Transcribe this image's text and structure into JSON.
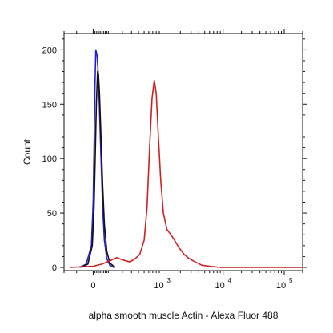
{
  "chart_data": {
    "type": "line",
    "title": "",
    "xlabel": "alpha smooth muscle Actin - Alexa Fluor 488",
    "ylabel": "Count",
    "xscale": "biexponential",
    "xlim": [
      -200,
      200000
    ],
    "ylim": [
      0,
      215
    ],
    "y_ticks": [
      0,
      50,
      100,
      150,
      200
    ],
    "x_ticks": [
      {
        "value": 0,
        "base": "0",
        "exp": ""
      },
      {
        "value": 1000,
        "base": "10",
        "exp": "3"
      },
      {
        "value": 10000,
        "base": "10",
        "exp": "4"
      },
      {
        "value": 100000,
        "base": "10",
        "exp": "5"
      }
    ],
    "grid": false,
    "legend": "none",
    "series": [
      {
        "color": "#2222cc",
        "points": [
          [
            -80,
            0
          ],
          [
            -40,
            3
          ],
          [
            -10,
            20
          ],
          [
            0,
            60
          ],
          [
            5,
            110
          ],
          [
            10,
            165
          ],
          [
            15,
            200
          ],
          [
            22,
            195
          ],
          [
            28,
            180
          ],
          [
            35,
            150
          ],
          [
            45,
            100
          ],
          [
            55,
            55
          ],
          [
            65,
            25
          ],
          [
            80,
            8
          ],
          [
            100,
            2
          ],
          [
            130,
            0
          ]
        ]
      },
      {
        "color": "#111111",
        "points": [
          [
            -70,
            0
          ],
          [
            -30,
            3
          ],
          [
            -5,
            20
          ],
          [
            5,
            55
          ],
          [
            12,
            105
          ],
          [
            18,
            150
          ],
          [
            25,
            180
          ],
          [
            30,
            178
          ],
          [
            36,
            160
          ],
          [
            45,
            120
          ],
          [
            55,
            75
          ],
          [
            65,
            40
          ],
          [
            80,
            15
          ],
          [
            100,
            4
          ],
          [
            140,
            0
          ]
        ]
      },
      {
        "color": "#cc2222",
        "points": [
          [
            -150,
            0
          ],
          [
            0,
            1
          ],
          [
            50,
            3
          ],
          [
            100,
            6
          ],
          [
            150,
            9
          ],
          [
            200,
            7
          ],
          [
            280,
            5
          ],
          [
            350,
            8
          ],
          [
            420,
            12
          ],
          [
            500,
            25
          ],
          [
            560,
            55
          ],
          [
            620,
            110
          ],
          [
            680,
            155
          ],
          [
            740,
            172
          ],
          [
            800,
            160
          ],
          [
            870,
            120
          ],
          [
            950,
            80
          ],
          [
            1050,
            50
          ],
          [
            1200,
            35
          ],
          [
            1400,
            30
          ],
          [
            1600,
            25
          ],
          [
            1900,
            18
          ],
          [
            2300,
            12
          ],
          [
            2800,
            8
          ],
          [
            3500,
            5
          ],
          [
            4500,
            2
          ],
          [
            6000,
            1
          ],
          [
            9000,
            0
          ],
          [
            200000,
            0
          ]
        ]
      }
    ]
  }
}
